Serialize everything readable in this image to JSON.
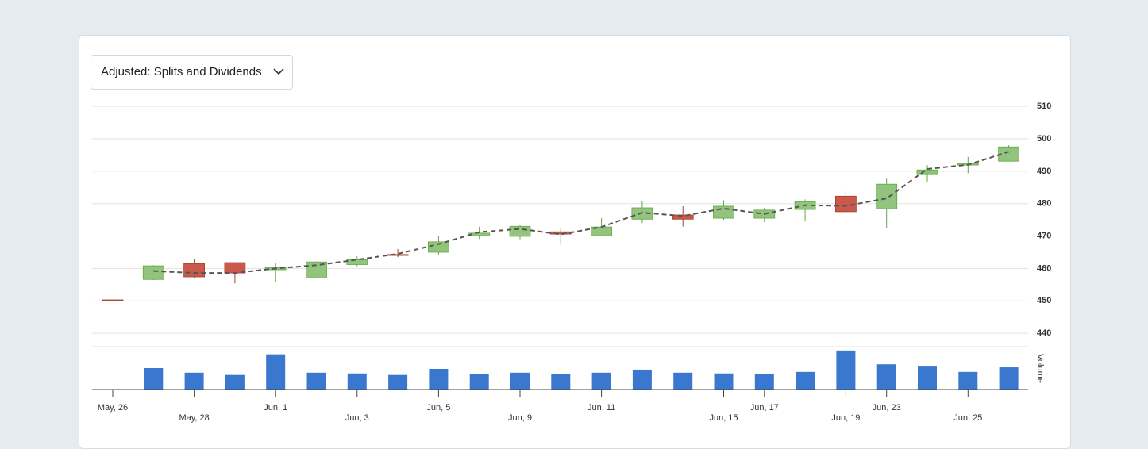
{
  "dropdown": {
    "label": "Adjusted: Splits and Dividends"
  },
  "chart_data": {
    "type": "candlestick",
    "categories": [
      "May, 26",
      null,
      "May, 28",
      null,
      "Jun, 1",
      null,
      "Jun, 3",
      null,
      "Jun, 5",
      null,
      "Jun, 9",
      null,
      "Jun, 11",
      null,
      null,
      "Jun, 15",
      "Jun, 17",
      null,
      "Jun, 19",
      "Jun, 23",
      null,
      "Jun, 25",
      null
    ],
    "open": [
      450.3,
      456.6,
      461.5,
      461.8,
      459.6,
      457.1,
      461.2,
      464.3,
      465.0,
      470.1,
      469.9,
      471.3,
      470.1,
      475.2,
      476.5,
      475.5,
      475.5,
      478.2,
      482.3,
      478.4,
      489.2,
      491.9,
      493.1
    ],
    "high": [
      450.3,
      461.0,
      462.8,
      461.8,
      461.8,
      462.2,
      463.7,
      466.0,
      470.0,
      472.9,
      473.3,
      472.6,
      475.5,
      480.9,
      479.2,
      481.0,
      478.7,
      481.3,
      483.8,
      487.7,
      491.9,
      494.4,
      498.0
    ],
    "low": [
      450.2,
      456.4,
      456.9,
      455.4,
      455.7,
      456.9,
      460.7,
      463.5,
      464.3,
      469.1,
      469.0,
      467.3,
      470.0,
      474.0,
      472.9,
      475.0,
      474.2,
      474.5,
      477.3,
      472.5,
      486.8,
      489.4,
      493.0
    ],
    "close": [
      450.2,
      460.8,
      457.4,
      458.6,
      460.3,
      462.0,
      462.7,
      464.0,
      468.2,
      470.9,
      473.0,
      470.6,
      472.8,
      478.7,
      475.2,
      479.2,
      478.0,
      480.6,
      477.5,
      486.0,
      490.4,
      492.4,
      497.5
    ],
    "line_values": [
      null,
      459.2,
      458.6,
      458.6,
      460.0,
      461.0,
      462.7,
      464.5,
      467.5,
      471.2,
      472.2,
      470.5,
      472.8,
      477.2,
      476.2,
      478.5,
      476.8,
      479.5,
      479.3,
      481.6,
      490.7,
      492.0,
      496.0
    ],
    "up_color": "#93c47d",
    "down_color": "#c9594a",
    "line_color": "#555555",
    "volume_color": "#3a78d0",
    "ylim": [
      436,
      512
    ],
    "yticks": [
      440,
      450,
      460,
      470,
      480,
      490,
      500,
      510
    ],
    "grid": true,
    "volume_label": "Volume",
    "volume": [
      0,
      28,
      22,
      19,
      46,
      22,
      21,
      19,
      27,
      20,
      22,
      20,
      22,
      26,
      22,
      21,
      20,
      23,
      51,
      33,
      30,
      23,
      29
    ],
    "volume_lim": [
      0,
      55
    ]
  }
}
